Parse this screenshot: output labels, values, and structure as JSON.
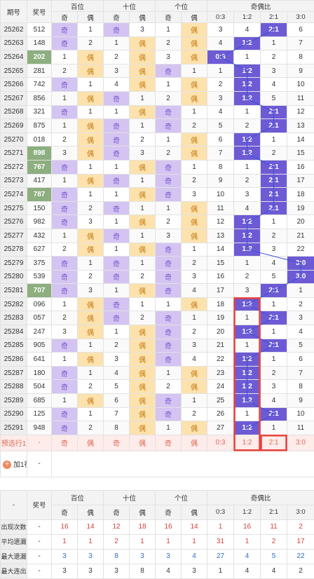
{
  "header": {
    "qihao": "期号",
    "jianghao": "奖号",
    "groups": [
      "百位",
      "十位",
      "个位",
      "奇偶比"
    ],
    "sub": [
      "奇",
      "偶",
      "奇",
      "偶",
      "奇",
      "偶",
      "0:3",
      "1:2",
      "2:1",
      "3:0"
    ]
  },
  "rows": [
    {
      "q": "25262",
      "j": "512",
      "b": [
        "奇",
        "1"
      ],
      "s": [
        "奇",
        "3"
      ],
      "g": [
        "1",
        "偶"
      ],
      "r": [
        "3",
        "4",
        "2:1",
        "6"
      ]
    },
    {
      "q": "25263",
      "j": "148",
      "b": [
        "奇",
        "2"
      ],
      "s": [
        "1",
        "偶"
      ],
      "g": [
        "2",
        "偶"
      ],
      "r": [
        "4",
        "1:2",
        "1",
        "7"
      ]
    },
    {
      "q": "25264",
      "j": "202",
      "b": [
        "1",
        "偶"
      ],
      "s": [
        "2",
        "偶"
      ],
      "g": [
        "3",
        "偶"
      ],
      "r": [
        "0:3",
        "1",
        "2",
        "8"
      ]
    },
    {
      "q": "25265",
      "j": "281",
      "b": [
        "2",
        "偶"
      ],
      "s": [
        "3",
        "偶"
      ],
      "g": [
        "奇",
        "1"
      ],
      "r": [
        "1",
        "1:2",
        "3",
        "9"
      ]
    },
    {
      "q": "25266",
      "j": "742",
      "b": [
        "奇",
        "1"
      ],
      "s": [
        "4",
        "偶"
      ],
      "g": [
        "1",
        "偶"
      ],
      "r": [
        "2",
        "1:2",
        "4",
        "10"
      ]
    },
    {
      "q": "25267",
      "j": "856",
      "b": [
        "1",
        "偶"
      ],
      "s": [
        "奇",
        "1"
      ],
      "g": [
        "2",
        "偶"
      ],
      "r": [
        "3",
        "1:2",
        "5",
        "11"
      ]
    },
    {
      "q": "25268",
      "j": "321",
      "b": [
        "奇",
        "1"
      ],
      "s": [
        "1",
        "偶"
      ],
      "g": [
        "奇",
        "1"
      ],
      "r": [
        "4",
        "1",
        "2:1",
        "12"
      ]
    },
    {
      "q": "25269",
      "j": "875",
      "b": [
        "1",
        "偶"
      ],
      "s": [
        "奇",
        "1"
      ],
      "g": [
        "奇",
        "2"
      ],
      "r": [
        "5",
        "2",
        "2:1",
        "13"
      ]
    },
    {
      "q": "25270",
      "j": "018",
      "b": [
        "2",
        "偶"
      ],
      "s": [
        "奇",
        "2"
      ],
      "g": [
        "1",
        "偶"
      ],
      "r": [
        "6",
        "1:2",
        "1",
        "14"
      ]
    },
    {
      "q": "25271",
      "j": "898",
      "b": [
        "3",
        "偶"
      ],
      "s": [
        "奇",
        "3"
      ],
      "g": [
        "2",
        "偶"
      ],
      "r": [
        "7",
        "1:2",
        "2",
        "15"
      ]
    },
    {
      "q": "25272",
      "j": "767",
      "b": [
        "奇",
        "1"
      ],
      "s": [
        "1",
        "偶"
      ],
      "g": [
        "奇",
        "1"
      ],
      "r": [
        "8",
        "1",
        "2:1",
        "16"
      ]
    },
    {
      "q": "25273",
      "j": "417",
      "b": [
        "1",
        "偶"
      ],
      "s": [
        "奇",
        "1"
      ],
      "g": [
        "奇",
        "2"
      ],
      "r": [
        "9",
        "2",
        "2:1",
        "17"
      ]
    },
    {
      "q": "25274",
      "j": "787",
      "b": [
        "奇",
        "1"
      ],
      "s": [
        "1",
        "偶"
      ],
      "g": [
        "奇",
        "3"
      ],
      "r": [
        "10",
        "3",
        "2:1",
        "18"
      ]
    },
    {
      "q": "25275",
      "j": "150",
      "b": [
        "奇",
        "2"
      ],
      "s": [
        "奇",
        "1"
      ],
      "g": [
        "1",
        "偶"
      ],
      "r": [
        "11",
        "4",
        "2:1",
        "19"
      ]
    },
    {
      "q": "25276",
      "j": "982",
      "b": [
        "奇",
        "3"
      ],
      "s": [
        "1",
        "偶"
      ],
      "g": [
        "2",
        "偶"
      ],
      "r": [
        "12",
        "1:2",
        "1",
        "20"
      ]
    },
    {
      "q": "25277",
      "j": "432",
      "b": [
        "1",
        "偶"
      ],
      "s": [
        "奇",
        "1"
      ],
      "g": [
        "3",
        "偶"
      ],
      "r": [
        "13",
        "1:2",
        "2",
        "21"
      ]
    },
    {
      "q": "25278",
      "j": "627",
      "b": [
        "2",
        "偶"
      ],
      "s": [
        "1",
        "偶"
      ],
      "g": [
        "奇",
        "1"
      ],
      "r": [
        "14",
        "1:2",
        "3",
        "22"
      ]
    },
    {
      "q": "25279",
      "j": "375",
      "b": [
        "奇",
        "1"
      ],
      "s": [
        "奇",
        "1"
      ],
      "g": [
        "奇",
        "2"
      ],
      "r": [
        "15",
        "1",
        "4",
        "3:0"
      ]
    },
    {
      "q": "25280",
      "j": "539",
      "b": [
        "奇",
        "2"
      ],
      "s": [
        "奇",
        "2"
      ],
      "g": [
        "奇",
        "3"
      ],
      "r": [
        "16",
        "2",
        "5",
        "3:0"
      ]
    },
    {
      "q": "25281",
      "j": "707",
      "b": [
        "奇",
        "3"
      ],
      "s": [
        "1",
        "偶"
      ],
      "g": [
        "奇",
        "4"
      ],
      "r": [
        "17",
        "3",
        "2:1",
        "1"
      ]
    },
    {
      "q": "25282",
      "j": "096",
      "b": [
        "1",
        "偶"
      ],
      "s": [
        "奇",
        "1"
      ],
      "g": [
        "1",
        "偶"
      ],
      "r": [
        "18",
        "1:2",
        "1",
        "2"
      ]
    },
    {
      "q": "25283",
      "j": "057",
      "b": [
        "2",
        "偶"
      ],
      "s": [
        "奇",
        "2"
      ],
      "g": [
        "奇",
        "1"
      ],
      "r": [
        "19",
        "1",
        "2:1",
        "3"
      ]
    },
    {
      "q": "25284",
      "j": "247",
      "b": [
        "3",
        "偶"
      ],
      "s": [
        "1",
        "偶"
      ],
      "g": [
        "奇",
        "2"
      ],
      "r": [
        "20",
        "1:2",
        "1",
        "4"
      ]
    },
    {
      "q": "25285",
      "j": "905",
      "b": [
        "奇",
        "1"
      ],
      "s": [
        "2",
        "偶"
      ],
      "g": [
        "奇",
        "3"
      ],
      "r": [
        "21",
        "1",
        "2:1",
        "5"
      ]
    },
    {
      "q": "25286",
      "j": "641",
      "b": [
        "1",
        "偶"
      ],
      "s": [
        "3",
        "偶"
      ],
      "g": [
        "奇",
        "4"
      ],
      "r": [
        "22",
        "1:2",
        "1",
        "6"
      ]
    },
    {
      "q": "25287",
      "j": "180",
      "b": [
        "奇",
        "1"
      ],
      "s": [
        "4",
        "偶"
      ],
      "g": [
        "1",
        "偶"
      ],
      "r": [
        "23",
        "1:2",
        "2",
        "7"
      ]
    },
    {
      "q": "25288",
      "j": "504",
      "b": [
        "奇",
        "2"
      ],
      "s": [
        "5",
        "偶"
      ],
      "g": [
        "2",
        "偶"
      ],
      "r": [
        "24",
        "1:2",
        "3",
        "8"
      ]
    },
    {
      "q": "25289",
      "j": "685",
      "b": [
        "1",
        "偶"
      ],
      "s": [
        "6",
        "偶"
      ],
      "g": [
        "奇",
        "1"
      ],
      "r": [
        "25",
        "1:2",
        "4",
        "9"
      ]
    },
    {
      "q": "25290",
      "j": "125",
      "b": [
        "奇",
        "1"
      ],
      "s": [
        "7",
        "偶"
      ],
      "g": [
        "奇",
        "2"
      ],
      "r": [
        "26",
        "1",
        "2:1",
        "10"
      ]
    },
    {
      "q": "25291",
      "j": "948",
      "b": [
        "奇",
        "2"
      ],
      "s": [
        "8",
        "偶"
      ],
      "g": [
        "1",
        "偶"
      ],
      "r": [
        "27",
        "1:2",
        "1",
        "11"
      ]
    }
  ],
  "highlight_jianghao": [
    "202",
    "898",
    "767",
    "787",
    "707"
  ],
  "predict": {
    "label": "预选行1",
    "dash": "-",
    "cells": [
      "奇",
      "偶",
      "奇",
      "偶",
      "奇",
      "偶",
      "0:3",
      "1:2",
      "2:1",
      "3:0"
    ]
  },
  "add_row": {
    "icon": "+",
    "label": "加1行",
    "dash": "-"
  },
  "stats": [
    {
      "label": "出现次数",
      "dash": "-",
      "cells": [
        "16",
        "14",
        "12",
        "18",
        "16",
        "14",
        "1",
        "16",
        "11",
        "2"
      ],
      "color": "red"
    },
    {
      "label": "平均遗漏",
      "dash": "-",
      "cells": [
        "1",
        "1",
        "2",
        "1",
        "1",
        "1",
        "31",
        "1",
        "2",
        "17"
      ],
      "color": "red"
    },
    {
      "label": "最大遗漏",
      "dash": "-",
      "cells": [
        "3",
        "3",
        "8",
        "3",
        "3",
        "4",
        "27",
        "4",
        "5",
        "22"
      ],
      "color": "blue"
    },
    {
      "label": "最大连出",
      "dash": "-",
      "cells": [
        "3",
        "3",
        "3",
        "8",
        "4",
        "3",
        "1",
        "4",
        "4",
        "2"
      ],
      "color": "plain"
    }
  ],
  "colors": {
    "odd": "#d4c4f2",
    "even": "#fde2ad",
    "ratio": "#6d5bd5",
    "highlight": "#8dae7f",
    "box": "#e8413c",
    "line": "#3b4fd8"
  }
}
